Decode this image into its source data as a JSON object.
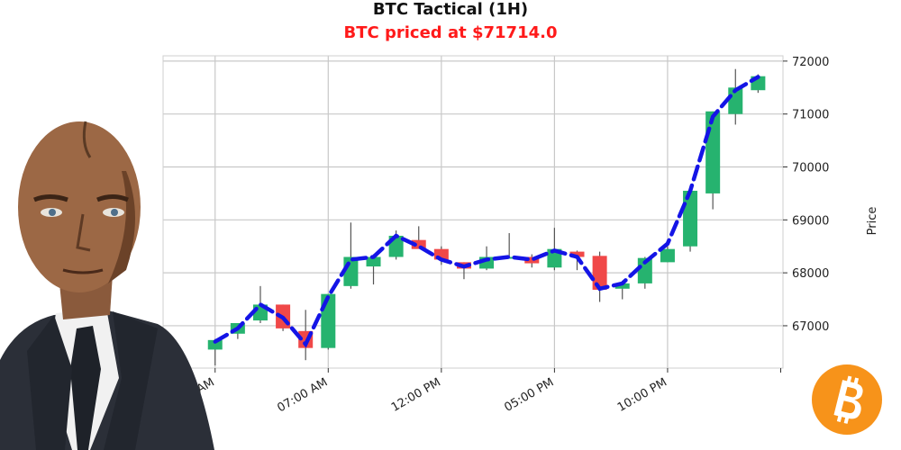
{
  "colors": {
    "bull": "#26b36f",
    "bear": "#f04848",
    "line": "#1414e6",
    "subtitle": "#ff1a1a",
    "grid": "#c8c8c8",
    "logo": "#f7931a"
  },
  "icons": {
    "avatar": "man-in-suit-portrait",
    "logo": "bitcoin-logo-icon"
  },
  "chart_data": {
    "type": "candlestick",
    "title": "BTC Tactical (1H)",
    "subtitle": "BTC priced at $71714.0",
    "ylabel": "Price",
    "ylim": [
      66200,
      72100
    ],
    "y_ticks": [
      67000,
      68000,
      69000,
      70000,
      71000,
      72000
    ],
    "x_ticks": [
      "02:00 AM",
      "07:00 AM",
      "12:00 PM",
      "05:00 PM",
      "10:00 PM"
    ],
    "x_tick_positions": [
      0,
      5,
      10,
      15,
      20
    ],
    "xlim": [
      -2.3,
      25.1
    ],
    "grid": true,
    "candles": [
      {
        "o": 66550,
        "h": 66750,
        "l": 66250,
        "c": 66730
      },
      {
        "o": 66850,
        "h": 67050,
        "l": 66750,
        "c": 67050
      },
      {
        "o": 67100,
        "h": 67750,
        "l": 67050,
        "c": 67400
      },
      {
        "o": 67400,
        "h": 67400,
        "l": 66900,
        "c": 66950
      },
      {
        "o": 66900,
        "h": 67300,
        "l": 66350,
        "c": 66580
      },
      {
        "o": 66580,
        "h": 67600,
        "l": 66550,
        "c": 67600
      },
      {
        "o": 67750,
        "h": 68950,
        "l": 67700,
        "c": 68300
      },
      {
        "o": 68120,
        "h": 68350,
        "l": 67780,
        "c": 68300
      },
      {
        "o": 68300,
        "h": 68800,
        "l": 68250,
        "c": 68700
      },
      {
        "o": 68620,
        "h": 68880,
        "l": 68480,
        "c": 68450
      },
      {
        "o": 68450,
        "h": 68500,
        "l": 68150,
        "c": 68250
      },
      {
        "o": 68200,
        "h": 68200,
        "l": 67880,
        "c": 68080
      },
      {
        "o": 68080,
        "h": 68500,
        "l": 68050,
        "c": 68300
      },
      {
        "o": 68300,
        "h": 68750,
        "l": 68280,
        "c": 68300
      },
      {
        "o": 68300,
        "h": 68350,
        "l": 68100,
        "c": 68180
      },
      {
        "o": 68100,
        "h": 68850,
        "l": 68050,
        "c": 68450
      },
      {
        "o": 68400,
        "h": 68420,
        "l": 68050,
        "c": 68300
      },
      {
        "o": 68320,
        "h": 68400,
        "l": 67450,
        "c": 67680
      },
      {
        "o": 67700,
        "h": 67850,
        "l": 67500,
        "c": 67800
      },
      {
        "o": 67800,
        "h": 68300,
        "l": 67700,
        "c": 68280
      },
      {
        "o": 68200,
        "h": 68500,
        "l": 68200,
        "c": 68450
      },
      {
        "o": 68500,
        "h": 69600,
        "l": 68400,
        "c": 69550
      },
      {
        "o": 69500,
        "h": 71050,
        "l": 69200,
        "c": 71050
      },
      {
        "o": 71000,
        "h": 71850,
        "l": 70800,
        "c": 71500
      },
      {
        "o": 71450,
        "h": 71750,
        "l": 71400,
        "c": 71714
      }
    ],
    "trend_line": [
      66700,
      66950,
      67400,
      67150,
      66650,
      67550,
      68250,
      68300,
      68700,
      68500,
      68250,
      68120,
      68250,
      68300,
      68250,
      68420,
      68300,
      67700,
      67800,
      68200,
      68550,
      69550,
      70950,
      71450,
      71700
    ]
  }
}
